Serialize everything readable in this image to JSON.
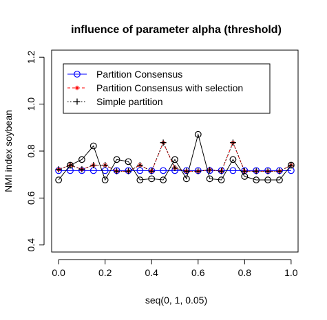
{
  "chart_data": {
    "type": "line",
    "title": "influence of parameter alpha (threshold)",
    "xlabel": "seq(0, 1, 0.05)",
    "ylabel": "NMI index soybean",
    "xlim": [
      -0.03,
      1.03
    ],
    "ylim": [
      0.37,
      1.23
    ],
    "xticks": [
      "0.0",
      "0.2",
      "0.4",
      "0.6",
      "0.8",
      "1.0"
    ],
    "yticks": [
      "0.4",
      "0.6",
      "0.8",
      "1.0",
      "1.2"
    ],
    "x": [
      0.0,
      0.05,
      0.1,
      0.15,
      0.2,
      0.25,
      0.3,
      0.35,
      0.4,
      0.45,
      0.5,
      0.55,
      0.6,
      0.65,
      0.7,
      0.75,
      0.8,
      0.85,
      0.9,
      0.95,
      1.0
    ],
    "legend_position": "top-left",
    "grid": false,
    "series": [
      {
        "name": "Partition Consensus",
        "color": "#0000ff",
        "line": "solid",
        "marker": "circle",
        "values": [
          0.717,
          0.717,
          0.717,
          0.717,
          0.717,
          0.717,
          0.717,
          0.717,
          0.717,
          0.717,
          0.717,
          0.717,
          0.717,
          0.717,
          0.717,
          0.717,
          0.717,
          0.717,
          0.717,
          0.717,
          0.717
        ]
      },
      {
        "name": "Partition Consensus with selection",
        "color": "#ff0000",
        "line": "dashed",
        "marker": "star",
        "values": [
          0.722,
          0.74,
          0.722,
          0.74,
          0.74,
          0.714,
          0.714,
          0.74,
          0.714,
          0.836,
          0.728,
          0.714,
          0.714,
          0.72,
          0.714,
          0.836,
          0.714,
          0.714,
          0.714,
          0.714,
          0.74
        ]
      },
      {
        "name": "Simple partition",
        "color": "#000000",
        "line": "dotted",
        "marker": "plus",
        "values": [
          0.722,
          0.74,
          0.722,
          0.74,
          0.74,
          0.714,
          0.714,
          0.74,
          0.714,
          0.836,
          0.728,
          0.714,
          0.714,
          0.72,
          0.714,
          0.836,
          0.714,
          0.714,
          0.714,
          0.714,
          0.74
        ]
      },
      {
        "name": "",
        "color": "#000000",
        "line": "solid",
        "marker": "circle",
        "values": [
          0.677,
          0.74,
          0.764,
          0.822,
          0.677,
          0.764,
          0.755,
          0.677,
          0.682,
          0.677,
          0.764,
          0.682,
          0.871,
          0.682,
          0.677,
          0.764,
          0.692,
          0.677,
          0.677,
          0.677,
          0.74
        ]
      }
    ]
  }
}
